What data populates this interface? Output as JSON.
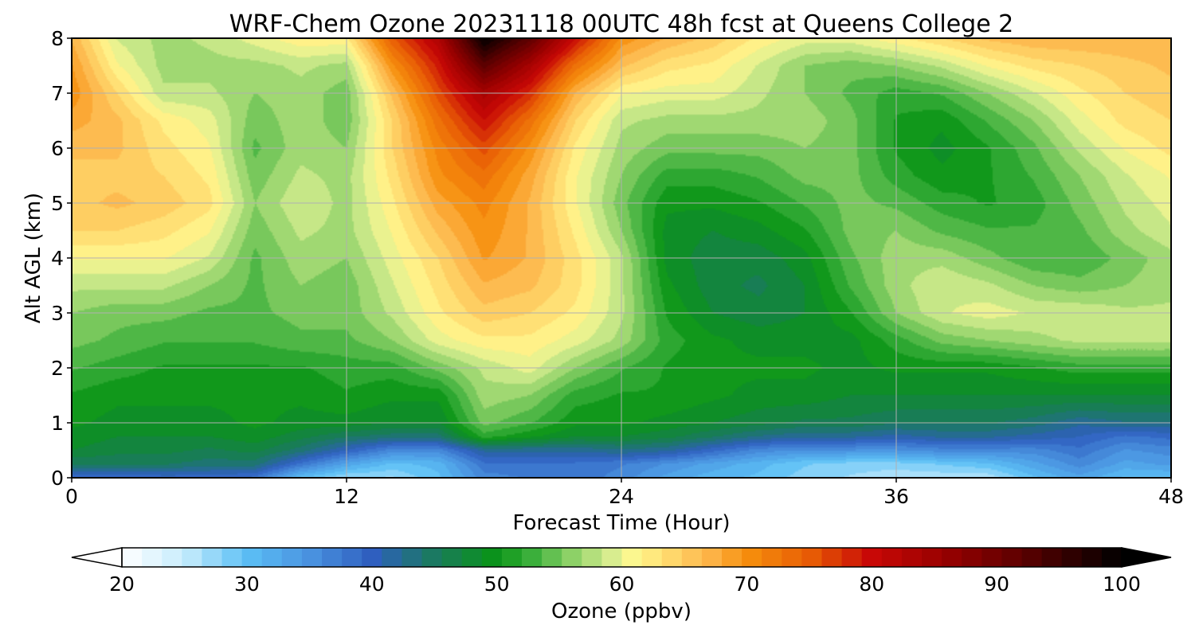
{
  "chart_data": {
    "type": "heatmap",
    "title": "WRF-Chem Ozone  20231118 00UTC 48h fcst at Queens College 2",
    "xlabel": "Forecast Time (Hour)",
    "ylabel": "Alt AGL (km)",
    "xlim": [
      0,
      48
    ],
    "ylim": [
      0,
      8
    ],
    "x_ticks": [
      0,
      12,
      24,
      36,
      48
    ],
    "y_ticks": [
      0,
      1,
      2,
      3,
      4,
      5,
      6,
      7,
      8
    ],
    "grid": true,
    "x_hours": [
      0,
      2,
      4,
      6,
      8,
      10,
      12,
      14,
      16,
      18,
      20,
      22,
      24,
      26,
      28,
      30,
      32,
      34,
      36,
      38,
      40,
      42,
      44,
      46,
      48
    ],
    "y_km": [
      0,
      0.25,
      0.5,
      0.75,
      1,
      1.5,
      2,
      2.5,
      3,
      3.5,
      4,
      4.5,
      5,
      5.5,
      6,
      6.5,
      7,
      7.5,
      8
    ],
    "ozone_ppbv": [
      [
        38,
        38,
        39,
        39,
        38,
        30,
        27,
        27,
        30,
        36,
        37,
        38,
        36,
        33,
        31,
        30,
        28,
        27,
        26,
        26,
        26,
        30,
        33,
        30,
        30
      ],
      [
        45,
        45,
        45,
        44,
        44,
        38,
        33,
        30,
        31,
        38,
        38,
        38,
        37,
        35,
        33,
        31,
        29,
        28,
        28,
        29,
        30,
        33,
        36,
        33,
        34
      ],
      [
        48,
        47,
        47,
        46,
        47,
        44,
        40,
        36,
        36,
        42,
        42,
        42,
        43,
        42,
        39,
        36,
        35,
        35,
        35,
        36,
        36,
        36,
        38,
        35,
        36
      ],
      [
        49,
        48,
        48,
        48,
        49,
        47,
        45,
        44,
        44,
        52,
        50,
        48,
        48,
        47,
        45,
        43,
        42,
        42,
        41,
        42,
        42,
        41,
        40,
        38,
        39
      ],
      [
        50,
        49,
        49,
        49,
        50,
        49,
        49,
        48,
        48,
        55,
        53,
        50,
        50,
        49,
        48,
        47,
        46,
        46,
        45,
        45,
        45,
        44,
        42,
        43,
        43
      ],
      [
        51,
        50,
        50,
        50,
        50,
        50,
        51,
        50,
        50,
        57,
        56,
        52,
        51,
        51,
        50,
        49,
        49,
        48,
        48,
        48,
        48,
        48,
        48,
        48,
        48
      ],
      [
        53,
        52,
        51,
        51,
        51,
        51,
        52,
        52,
        55,
        58,
        60,
        56,
        53,
        51,
        50,
        50,
        50,
        49,
        50,
        50,
        50,
        51,
        52,
        52,
        52
      ],
      [
        55,
        54,
        53,
        53,
        53,
        54,
        54,
        56,
        60,
        62,
        62,
        60,
        57,
        52,
        50,
        49,
        49,
        49,
        52,
        55,
        56,
        57,
        58,
        58,
        58
      ],
      [
        56,
        55,
        55,
        54,
        54,
        55,
        55,
        58,
        62,
        65,
        64,
        62,
        58,
        51,
        48,
        47,
        48,
        51,
        56,
        59,
        60,
        59,
        59,
        58,
        58
      ],
      [
        58,
        58,
        58,
        56,
        54,
        56,
        55,
        59,
        63,
        67,
        66,
        63,
        58,
        50,
        47,
        46,
        48,
        53,
        57,
        59,
        58,
        56,
        55,
        56,
        57
      ],
      [
        61,
        61,
        61,
        59,
        54,
        57,
        56,
        60,
        64,
        69,
        67,
        63,
        58,
        49,
        47,
        47,
        49,
        54,
        57,
        57,
        55,
        53,
        53,
        55,
        57
      ],
      [
        64,
        64,
        63,
        61,
        55,
        58,
        57,
        61,
        66,
        70,
        67,
        62,
        56,
        49,
        48,
        49,
        51,
        55,
        56,
        54,
        53,
        53,
        54,
        57,
        59
      ],
      [
        65,
        66,
        65,
        63,
        56,
        59,
        57,
        62,
        68,
        71,
        67,
        61,
        55,
        50,
        50,
        51,
        53,
        55,
        54,
        52,
        51,
        52,
        55,
        58,
        60
      ],
      [
        65,
        65,
        64,
        62,
        55,
        58,
        57,
        63,
        70,
        73,
        68,
        61,
        56,
        52,
        52,
        53,
        55,
        55,
        52,
        50,
        51,
        53,
        56,
        59,
        61
      ],
      [
        66,
        66,
        63,
        61,
        54,
        57,
        56,
        64,
        71,
        76,
        70,
        62,
        57,
        55,
        55,
        55,
        56,
        55,
        51,
        49,
        51,
        54,
        58,
        61,
        63
      ],
      [
        68,
        66,
        62,
        60,
        55,
        57,
        55,
        64,
        73,
        80,
        73,
        64,
        58,
        57,
        57,
        57,
        57,
        55,
        51,
        50,
        53,
        56,
        60,
        63,
        64
      ],
      [
        70,
        64,
        58,
        58,
        56,
        57,
        55,
        66,
        76,
        84,
        78,
        67,
        61,
        60,
        60,
        58,
        56,
        54,
        52,
        53,
        56,
        59,
        62,
        64,
        65
      ],
      [
        69,
        61,
        57,
        57,
        57,
        58,
        57,
        70,
        79,
        92,
        84,
        73,
        66,
        63,
        62,
        59,
        56,
        55,
        56,
        58,
        61,
        63,
        64,
        65,
        66
      ],
      [
        67,
        59,
        57,
        58,
        60,
        62,
        62,
        75,
        83,
        100,
        92,
        80,
        70,
        67,
        65,
        62,
        60,
        60,
        62,
        64,
        66,
        67,
        67,
        67,
        67
      ]
    ],
    "colorbar": {
      "label": "Ozone  (ppbv)",
      "min": 20,
      "max": 100,
      "ticks": [
        20,
        30,
        40,
        50,
        60,
        70,
        80,
        90,
        100
      ],
      "extend": "both"
    }
  }
}
